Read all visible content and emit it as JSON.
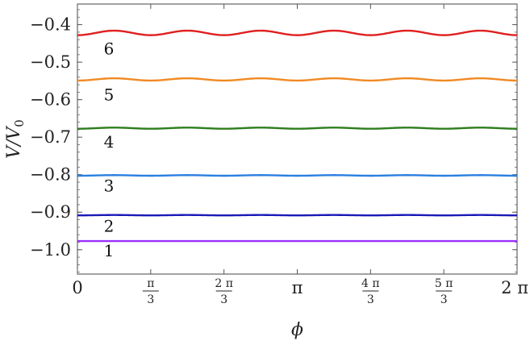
{
  "chart_data": {
    "type": "line",
    "xlabel": "ϕ",
    "ylabel": "V/V0",
    "xlim": [
      0,
      6.283185307
    ],
    "ylim": [
      -1.065,
      -0.345
    ],
    "grid": false,
    "legend": "none",
    "x_ticks": [
      {
        "value": 0,
        "kind": "plain",
        "text": "0"
      },
      {
        "value": 1.047197551,
        "kind": "frac",
        "num": "π",
        "den": "3"
      },
      {
        "value": 2.094395102,
        "kind": "frac",
        "num": "2 π",
        "den": "3"
      },
      {
        "value": 3.141592654,
        "kind": "plain",
        "text": "π"
      },
      {
        "value": 4.188790205,
        "kind": "frac",
        "num": "4 π",
        "den": "3"
      },
      {
        "value": 5.235987756,
        "kind": "frac",
        "num": "5 π",
        "den": "3"
      },
      {
        "value": 6.283185307,
        "kind": "plain",
        "text": "2 π"
      }
    ],
    "y_ticks": [
      {
        "value": -0.4,
        "text": "−0.4"
      },
      {
        "value": -0.5,
        "text": "−0.5"
      },
      {
        "value": -0.6,
        "text": "−0.6"
      },
      {
        "value": -0.7,
        "text": "−0.7"
      },
      {
        "value": -0.8,
        "text": "−0.8"
      },
      {
        "value": -0.9,
        "text": "−0.9"
      },
      {
        "value": -1.0,
        "text": "−1.0"
      }
    ],
    "y_minor_step": 0.02,
    "series": [
      {
        "label": "1",
        "color": "#9b30ff",
        "mean": -0.977,
        "amplitude": 0.0,
        "cycles": 6,
        "label_y": -1.0
      },
      {
        "label": "2",
        "color": "#1a1ab8",
        "mean": -0.908,
        "amplitude": 0.0005,
        "cycles": 6,
        "label_y": -0.935
      },
      {
        "label": "3",
        "color": "#2a7fe0",
        "mean": -0.802,
        "amplitude": 0.0008,
        "cycles": 6,
        "label_y": -0.828
      },
      {
        "label": "4",
        "color": "#2e7d1e",
        "mean": -0.676,
        "amplitude": 0.0015,
        "cycles": 6,
        "label_y": -0.71
      },
      {
        "label": "5",
        "color": "#f08a24",
        "mean": -0.546,
        "amplitude": 0.003,
        "cycles": 6,
        "label_y": -0.585
      },
      {
        "label": "6",
        "color": "#e02020",
        "mean": -0.422,
        "amplitude": 0.006,
        "cycles": 6,
        "label_y": -0.462
      }
    ]
  }
}
